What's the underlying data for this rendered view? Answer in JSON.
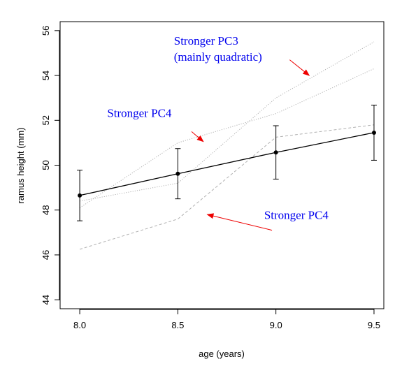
{
  "chart_data": {
    "type": "line",
    "xlabel": "age (years)",
    "ylabel": "ramus height (mm)",
    "xlim": [
      7.9,
      9.55
    ],
    "ylim": [
      43.6,
      56.4
    ],
    "xticks": [
      "8.0",
      "8.5",
      "9.0",
      "9.5"
    ],
    "yticks": [
      "44",
      "46",
      "48",
      "50",
      "52",
      "54",
      "56"
    ],
    "x": [
      8.0,
      8.5,
      9.0,
      9.5
    ],
    "mean": {
      "values": [
        48.65,
        49.62,
        50.57,
        51.45
      ],
      "lower": [
        47.52,
        48.5,
        49.38,
        50.22
      ],
      "upper": [
        49.78,
        50.74,
        51.76,
        52.68
      ],
      "color": "#000000"
    },
    "series": [
      {
        "values": [
          46.25,
          47.6,
          51.25,
          51.8
        ],
        "style": "dashed",
        "color": "#b0b0b0"
      },
      {
        "values": [
          48.4,
          49.2,
          53.0,
          55.5
        ],
        "style": "dotted",
        "color": "#b0b0b0"
      },
      {
        "values": [
          48.1,
          51.0,
          52.3,
          54.3
        ],
        "style": "dotted",
        "color": "#b0b0b0"
      }
    ],
    "annotations": [
      {
        "lines": [
          "Stronger PC3",
          "(mainly quadratic)"
        ],
        "color": "#0000ee",
        "arrow_color": "#ee0000",
        "anchor": [
          8.48,
          55.38
        ],
        "arrow_from": [
          9.07,
          54.7
        ],
        "arrow_to": [
          9.17,
          54.0
        ]
      },
      {
        "lines": [
          "Stronger PC4"
        ],
        "color": "#0000ee",
        "arrow_color": "#ee0000",
        "anchor": [
          8.14,
          52.15
        ],
        "arrow_from": [
          8.57,
          51.5
        ],
        "arrow_to": [
          8.63,
          51.05
        ]
      },
      {
        "lines": [
          "Stronger PC4"
        ],
        "color": "#0000ee",
        "arrow_color": "#ee0000",
        "anchor": [
          8.94,
          47.6
        ],
        "arrow_from": [
          8.98,
          47.1
        ],
        "arrow_to": [
          8.65,
          47.8
        ]
      }
    ]
  }
}
